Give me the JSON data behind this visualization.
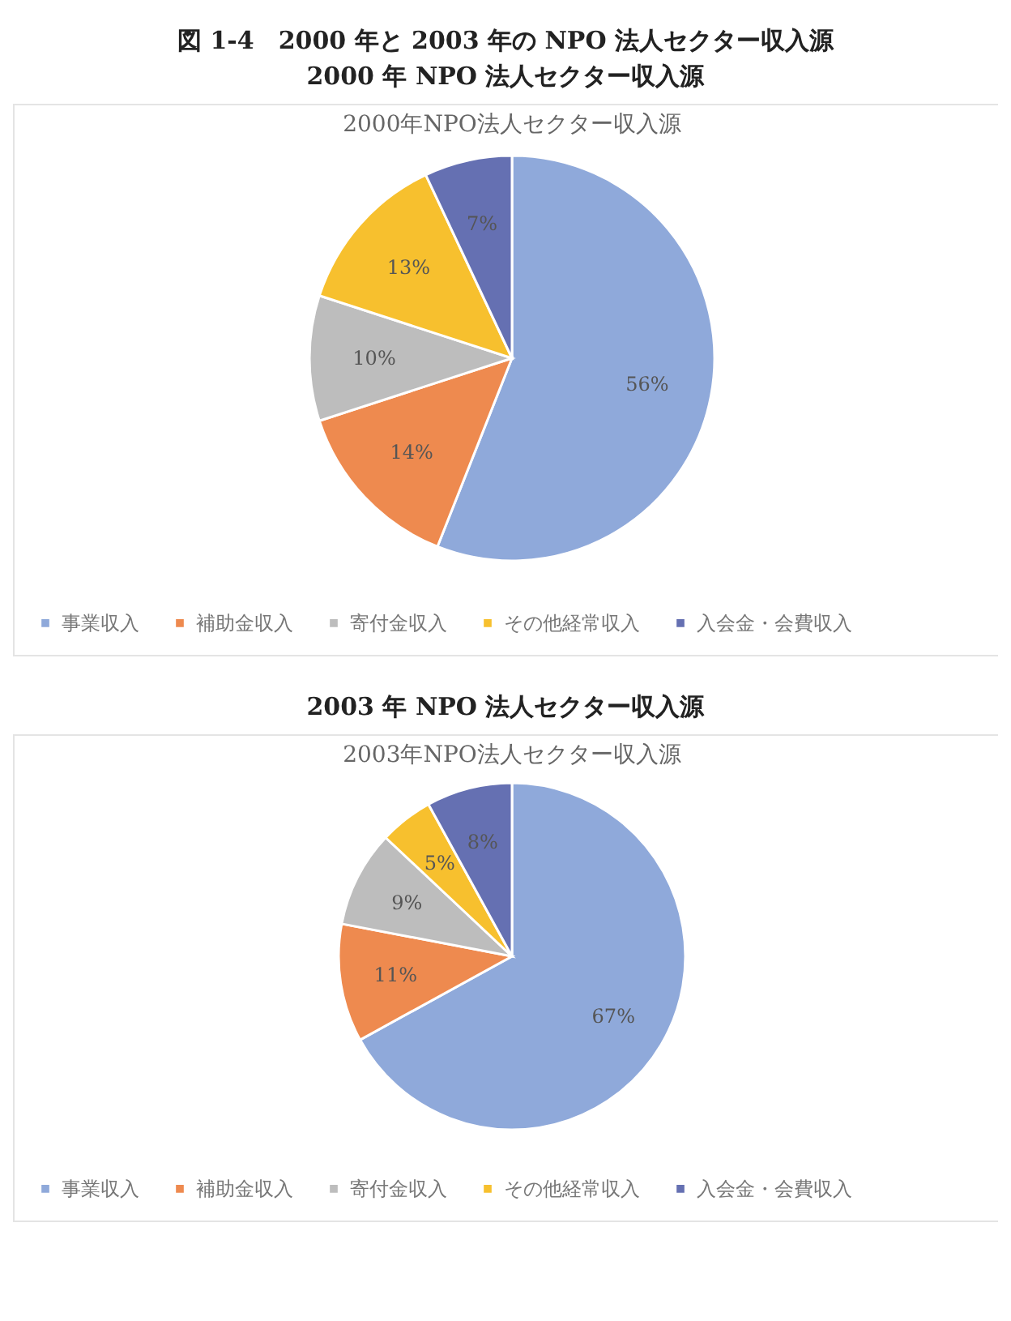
{
  "chart_data": [
    {
      "type": "pie",
      "title": "図 1-4　2000 年と 2003 年の NPO 法人セクター収入源",
      "subtitle": "2000 年 NPO 法人セクター収入源",
      "annotations": [
        "2000年NPO法人セクター収入源"
      ],
      "categories": [
        "事業収入",
        "補助金収入",
        "寄付金収入",
        "その他経常収入",
        "入会金・会費収入"
      ],
      "values": [
        56,
        14,
        10,
        13,
        7
      ],
      "value_labels": [
        "56%",
        "14%",
        "10%",
        "13%",
        "7%"
      ],
      "colors": [
        "#8fa9da",
        "#ee8a4f",
        "#bdbdbd",
        "#f7c02e",
        "#6570b2"
      ],
      "legend": "bottom"
    },
    {
      "type": "pie",
      "title": "2003 年 NPO 法人セクター収入源",
      "annotations": [
        "2003年NPO法人セクター収入源"
      ],
      "categories": [
        "事業収入",
        "補助金収入",
        "寄付金収入",
        "その他経常収入",
        "入会金・会費収入"
      ],
      "values": [
        67,
        11,
        9,
        5,
        8
      ],
      "value_labels": [
        "67%",
        "11%",
        "9%",
        "5%",
        "8%"
      ],
      "colors": [
        "#8fa9da",
        "#ee8a4f",
        "#bdbdbd",
        "#f7c02e",
        "#6570b2"
      ],
      "legend": "bottom"
    }
  ]
}
